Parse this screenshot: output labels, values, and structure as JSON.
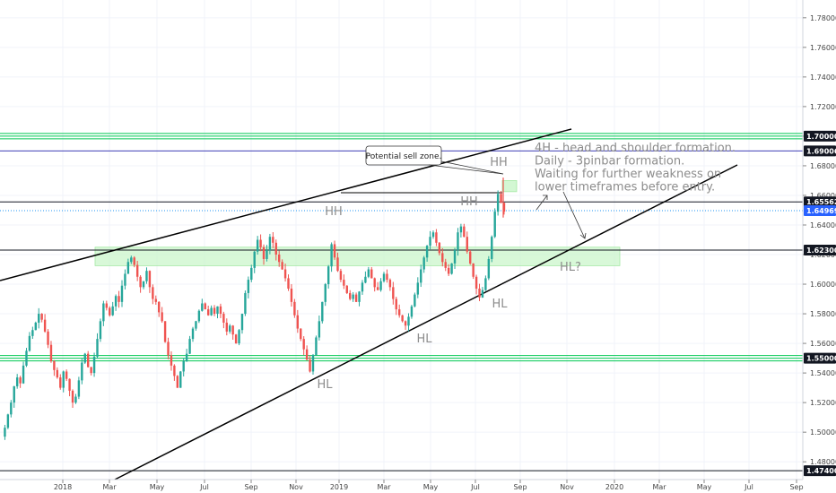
{
  "chart_data": {
    "type": "candlestick",
    "instrument_notes": [
      "4H - head and shoulder formation.",
      "Daily - 3pinbar formation.",
      "Waiting for further weakness on",
      "lower timeframes before entry."
    ],
    "callout": "Potential sell zone.",
    "x_ticks": [
      "2018",
      "Mar",
      "May",
      "Jul",
      "Sep",
      "Nov",
      "2019",
      "Mar",
      "May",
      "Jul",
      "Sep",
      "Nov",
      "2020",
      "Mar",
      "May",
      "Jul",
      "Sep"
    ],
    "y_ticks": [
      "1.78000",
      "1.76000",
      "1.74000",
      "1.72000",
      "1.70000",
      "1.68000",
      "1.66000",
      "1.64000",
      "1.62000",
      "1.60000",
      "1.58000",
      "1.56000",
      "1.54000",
      "1.52000",
      "1.50000",
      "1.48000"
    ],
    "ylim": [
      1.468,
      1.792
    ],
    "price_tags": [
      {
        "value": 1.7,
        "label": "1.70000",
        "bg": "#131722",
        "fg": "#ffffff"
      },
      {
        "value": 1.69006,
        "label": "1.69006",
        "bg": "#131722",
        "fg": "#ffffff"
      },
      {
        "value": 1.65562,
        "label": "1.65562",
        "bg": "#131722",
        "fg": "#ffffff"
      },
      {
        "value": 1.64969,
        "label": "1.64969",
        "bg": "#2962ff",
        "fg": "#ffffff"
      },
      {
        "value": 1.623,
        "label": "1.62300",
        "bg": "#131722",
        "fg": "#ffffff"
      },
      {
        "value": 1.55,
        "label": "1.55000",
        "bg": "#131722",
        "fg": "#ffffff"
      },
      {
        "value": 1.474,
        "label": "1.47400",
        "bg": "#131722",
        "fg": "#ffffff"
      }
    ],
    "horizontal_levels": [
      {
        "value": 1.7,
        "color": "#00c853",
        "style": "triple"
      },
      {
        "value": 1.69006,
        "color": "#3f3fb4",
        "style": "single"
      },
      {
        "value": 1.65562,
        "color": "#131722",
        "style": "single"
      },
      {
        "value": 1.64969,
        "color": "#2196f3",
        "style": "dotted"
      },
      {
        "value": 1.623,
        "color": "#131722",
        "style": "single"
      },
      {
        "value": 1.55,
        "color": "#00c853",
        "style": "triple"
      },
      {
        "value": 1.474,
        "color": "#131722",
        "style": "single"
      }
    ],
    "zone": {
      "from": 1.6125,
      "to": 1.625,
      "color": "#c8f5c8"
    },
    "small_zone": {
      "from": 1.6625,
      "to": 1.67
    },
    "labels": [
      {
        "text": "HH",
        "x_index": 0.365,
        "y": 1.64
      },
      {
        "text": "HH",
        "x_index": 0.545,
        "y": 1.646
      },
      {
        "text": "HH",
        "x_index": 0.585,
        "y": 1.673
      },
      {
        "text": "HL",
        "x_index": 0.372,
        "y": 1.523
      },
      {
        "text": "HL",
        "x_index": 0.483,
        "y": 1.556
      },
      {
        "text": "HL",
        "x_index": 0.582,
        "y": 1.58
      },
      {
        "text": "HL?",
        "x_index": 0.69,
        "y": 1.608
      }
    ],
    "series_color_up": "#26a69a",
    "series_color_down": "#ef5350",
    "ohlc_path": [
      1.497,
      1.503,
      1.512,
      1.52,
      1.531,
      1.537,
      1.533,
      1.545,
      1.555,
      1.565,
      1.569,
      1.574,
      1.58,
      1.576,
      1.568,
      1.559,
      1.548,
      1.542,
      1.537,
      1.53,
      1.541,
      1.536,
      1.528,
      1.52,
      1.524,
      1.535,
      1.547,
      1.553,
      1.544,
      1.54,
      1.551,
      1.563,
      1.575,
      1.587,
      1.584,
      1.579,
      1.585,
      1.592,
      1.588,
      1.599,
      1.607,
      1.615,
      1.618,
      1.613,
      1.605,
      1.598,
      1.602,
      1.609,
      1.598,
      1.59,
      1.588,
      1.581,
      1.575,
      1.561,
      1.552,
      1.545,
      1.538,
      1.53,
      1.541,
      1.548,
      1.553,
      1.563,
      1.57,
      1.575,
      1.582,
      1.587,
      1.583,
      1.579,
      1.584,
      1.58,
      1.585,
      1.58,
      1.574,
      1.568,
      1.572,
      1.566,
      1.56,
      1.569,
      1.58,
      1.594,
      1.603,
      1.611,
      1.622,
      1.63,
      1.625,
      1.617,
      1.623,
      1.632,
      1.628,
      1.62,
      1.615,
      1.61,
      1.604,
      1.597,
      1.588,
      1.579,
      1.57,
      1.563,
      1.556,
      1.549,
      1.541,
      1.552,
      1.564,
      1.575,
      1.588,
      1.6,
      1.612,
      1.627,
      1.618,
      1.609,
      1.603,
      1.599,
      1.594,
      1.59,
      1.593,
      1.588,
      1.595,
      1.601,
      1.605,
      1.61,
      1.604,
      1.598,
      1.596,
      1.602,
      1.607,
      1.603,
      1.598,
      1.59,
      1.583,
      1.579,
      1.575,
      1.572,
      1.578,
      1.585,
      1.593,
      1.601,
      1.61,
      1.618,
      1.626,
      1.632,
      1.635,
      1.628,
      1.621,
      1.615,
      1.611,
      1.607,
      1.614,
      1.623,
      1.635,
      1.639,
      1.632,
      1.622,
      1.614,
      1.605,
      1.597,
      1.591,
      1.596,
      1.604,
      1.617,
      1.632,
      1.649,
      1.661,
      1.655,
      1.649
    ]
  }
}
